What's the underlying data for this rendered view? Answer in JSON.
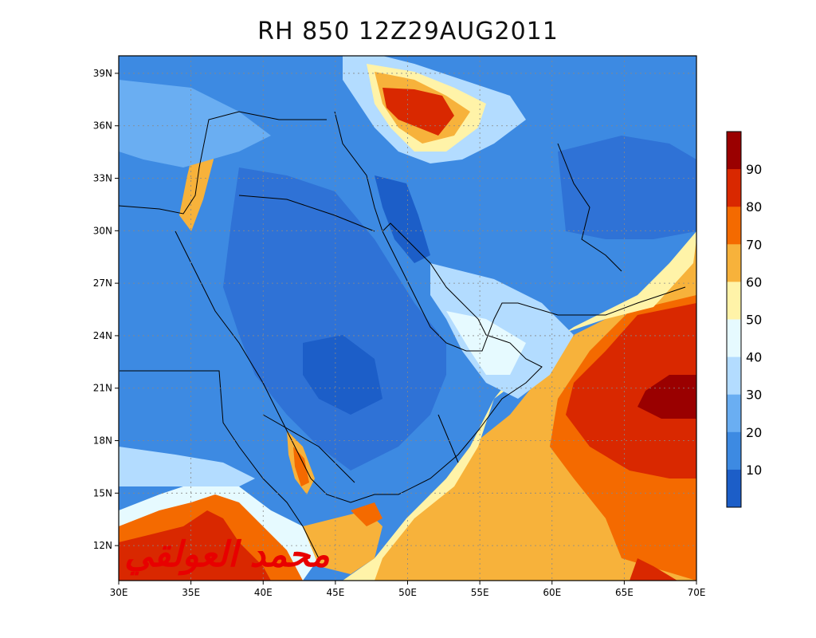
{
  "title": "RH 850 12Z29AUG2011",
  "signature_text": "محمد العولقي",
  "map": {
    "lon_range": [
      30,
      70
    ],
    "lat_range": [
      10,
      40
    ],
    "lon_ticks": [
      "30E",
      "35E",
      "40E",
      "45E",
      "50E",
      "55E",
      "60E",
      "65E",
      "70E"
    ],
    "lat_ticks": [
      "39N",
      "36N",
      "33N",
      "30N",
      "27N",
      "24N",
      "21N",
      "18N",
      "15N",
      "12N"
    ],
    "lon_tick_values": [
      30,
      35,
      40,
      45,
      50,
      55,
      60,
      65,
      70
    ],
    "lat_tick_values": [
      39,
      36,
      33,
      30,
      27,
      24,
      21,
      18,
      15,
      12
    ],
    "grid": true,
    "variable": "Relative humidity at 850 hPa (%)"
  },
  "colorbar": {
    "labels": [
      "90",
      "80",
      "70",
      "60",
      "50",
      "40",
      "30",
      "20",
      "10"
    ],
    "colors": [
      "#9a0000",
      "#d92800",
      "#f46a00",
      "#f7b23b",
      "#fff3a8",
      "#e6faff",
      "#b3dcff",
      "#6aaef2",
      "#3d8ae2",
      "#1c5ec8"
    ]
  }
}
